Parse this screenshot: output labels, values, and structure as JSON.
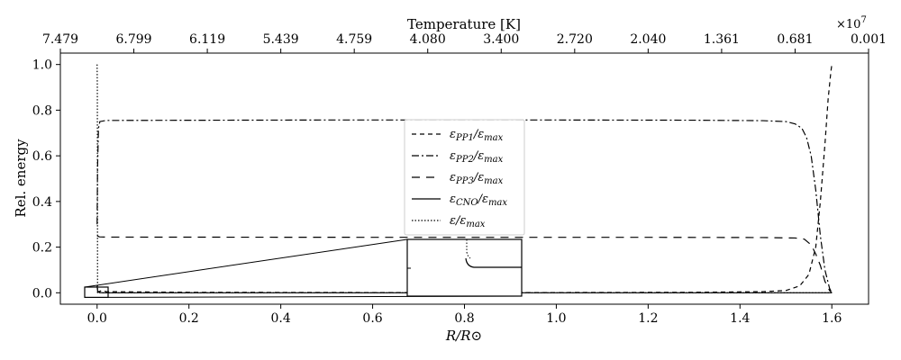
{
  "chart_data": {
    "type": "line",
    "title": "",
    "xlabel": "R/R⊙",
    "ylabel": "Rel. energy",
    "xlim": [
      -0.08,
      1.68
    ],
    "ylim": [
      -0.05,
      1.05
    ],
    "x_ticks": [
      "0.0",
      "0.2",
      "0.4",
      "0.6",
      "0.8",
      "1.0",
      "1.2",
      "1.4",
      "1.6"
    ],
    "x_tick_values": [
      0.0,
      0.2,
      0.4,
      0.6,
      0.8,
      1.0,
      1.2,
      1.4,
      1.6
    ],
    "y_ticks": [
      "0.0",
      "0.2",
      "0.4",
      "0.6",
      "0.8",
      "1.0"
    ],
    "y_tick_values": [
      0.0,
      0.2,
      0.4,
      0.6,
      0.8,
      1.0
    ],
    "top_axis": {
      "label": "Temperature [K]",
      "multiplier": "×10",
      "multiplier_exp": "7",
      "ticks": [
        "7.479",
        "6.799",
        "6.119",
        "5.439",
        "4.759",
        "4.080",
        "3.400",
        "2.720",
        "2.040",
        "1.361",
        "0.681",
        "0.001"
      ],
      "tick_positions_r": [
        -0.08,
        0.08,
        0.24,
        0.4,
        0.56,
        0.72,
        0.88,
        1.04,
        1.2,
        1.36,
        1.52,
        1.68
      ]
    },
    "legend_position": "center",
    "grid": false,
    "series": [
      {
        "name": "εPP1/εmax",
        "style": "dashed",
        "points": [
          [
            0.0,
            0.0
          ],
          [
            0.004,
            0.005
          ],
          [
            0.01,
            0.01
          ],
          [
            0.02,
            0.005
          ],
          [
            0.2,
            0.002
          ],
          [
            0.6,
            0.001
          ],
          [
            1.0,
            0.001
          ],
          [
            1.3,
            0.002
          ],
          [
            1.45,
            0.005
          ],
          [
            1.5,
            0.01
          ],
          [
            1.53,
            0.03
          ],
          [
            1.55,
            0.08
          ],
          [
            1.565,
            0.2
          ],
          [
            1.575,
            0.4
          ],
          [
            1.585,
            0.65
          ],
          [
            1.592,
            0.85
          ],
          [
            1.598,
            0.97
          ],
          [
            1.6,
            1.0
          ]
        ]
      },
      {
        "name": "εPP2/εmax",
        "style": "dashdot",
        "points": [
          [
            0.0,
            0.3
          ],
          [
            0.001,
            0.55
          ],
          [
            0.003,
            0.72
          ],
          [
            0.006,
            0.75
          ],
          [
            0.02,
            0.755
          ],
          [
            0.5,
            0.757
          ],
          [
            1.0,
            0.757
          ],
          [
            1.3,
            0.756
          ],
          [
            1.45,
            0.754
          ],
          [
            1.5,
            0.75
          ],
          [
            1.52,
            0.74
          ],
          [
            1.535,
            0.72
          ],
          [
            1.545,
            0.68
          ],
          [
            1.555,
            0.6
          ],
          [
            1.565,
            0.45
          ],
          [
            1.575,
            0.25
          ],
          [
            1.585,
            0.1
          ],
          [
            1.595,
            0.02
          ],
          [
            1.6,
            0.0
          ]
        ]
      },
      {
        "name": "εPP3/εmax",
        "style": "longdash",
        "points": [
          [
            0.0,
            0.25
          ],
          [
            0.005,
            0.245
          ],
          [
            0.02,
            0.244
          ],
          [
            0.6,
            0.243
          ],
          [
            1.2,
            0.243
          ],
          [
            1.45,
            0.242
          ],
          [
            1.52,
            0.24
          ],
          [
            1.54,
            0.235
          ],
          [
            1.555,
            0.21
          ],
          [
            1.565,
            0.17
          ],
          [
            1.575,
            0.12
          ],
          [
            1.585,
            0.05
          ],
          [
            1.595,
            0.01
          ],
          [
            1.6,
            0.0
          ]
        ]
      },
      {
        "name": "εCNO/εmax",
        "style": "solid",
        "points": [
          [
            0.0,
            0.03
          ],
          [
            0.001,
            0.01
          ],
          [
            0.003,
            0.003
          ],
          [
            0.01,
            0.0
          ],
          [
            1.6,
            0.0
          ]
        ]
      },
      {
        "name": "ε/εmax",
        "style": "dotted",
        "points": [
          [
            0.0,
            1.0
          ],
          [
            0.0005,
            0.9
          ],
          [
            0.001,
            0.0
          ],
          [
            1.6,
            0.0
          ]
        ]
      }
    ],
    "legend": [
      {
        "base": "ε",
        "sub": "PP1",
        "over": "/ε",
        "sub2": "max",
        "style": "dashed"
      },
      {
        "base": "ε",
        "sub": "PP2",
        "over": "/ε",
        "sub2": "max",
        "style": "dashdot"
      },
      {
        "base": "ε",
        "sub": "PP3",
        "over": "/ε",
        "sub2": "max",
        "style": "longdash"
      },
      {
        "base": "ε",
        "sub": "CNO",
        "over": "/ε",
        "sub2": "max",
        "style": "solid"
      },
      {
        "base": "ε",
        "sub": "",
        "over": "/ε",
        "sub2": "max",
        "style": "dotted"
      }
    ],
    "inset": {
      "source_xlim": [
        -0.03,
        0.03
      ],
      "source_ylim": [
        -0.02,
        0.025
      ],
      "note": "zoom of the near-center region"
    }
  }
}
